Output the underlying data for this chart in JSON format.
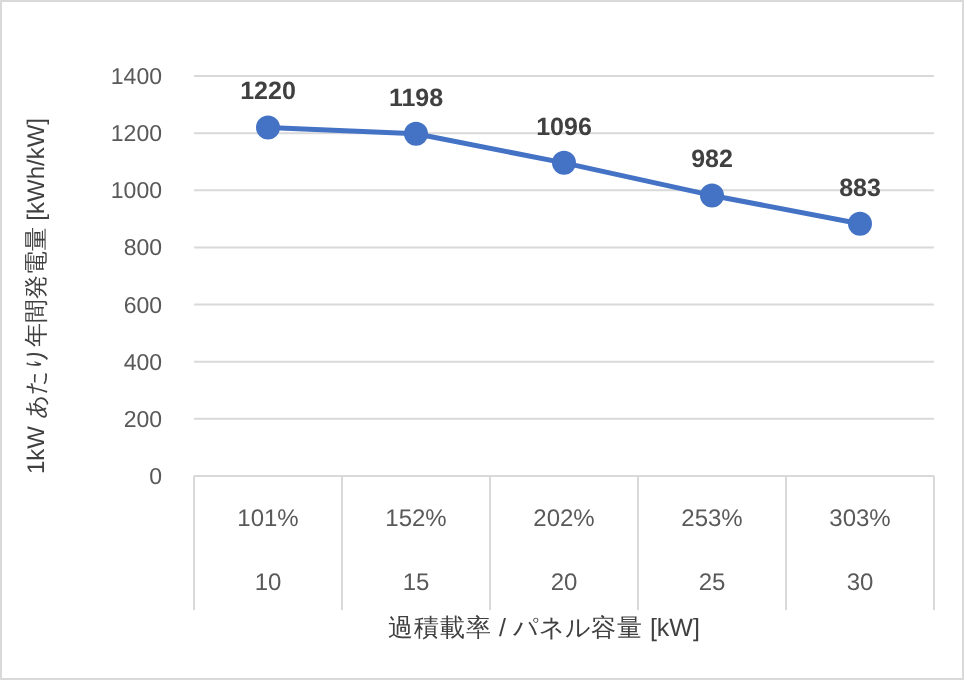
{
  "chart_data": {
    "type": "line",
    "xlabel": "過積載率 / パネル容量 [kW]",
    "ylabel": "1kW あたり年間発電量 [kWh/kW]",
    "categories": [
      "101%\n10",
      "152%\n15",
      "202%\n20",
      "253%\n25",
      "303%\n30"
    ],
    "series": [
      {
        "color": "#4472c4",
        "values": [
          1220,
          1198,
          1096,
          982,
          883
        ]
      }
    ],
    "ylim": [
      0,
      1400
    ],
    "yticks": [
      0,
      200,
      400,
      600,
      800,
      1000,
      1200,
      1400
    ],
    "grid": "y",
    "marker": "circle",
    "line_style": "solid",
    "data_labels": true
  }
}
